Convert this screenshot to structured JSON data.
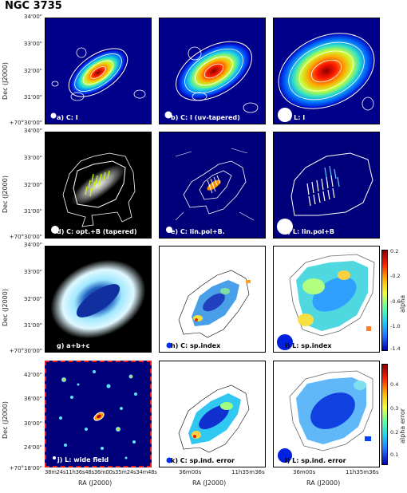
{
  "figure": {
    "title": "NGC 3735",
    "y_axis_label": "Dec (J2000)",
    "x_axis_label": "RA (J2000)",
    "dec_ticks_rows_1_3": [
      "34'00\"",
      "33'00\"",
      "32'00\"",
      "31'00\"",
      "+70°30'00\""
    ],
    "dec_ticks_row_4": [
      "42'00\"",
      "36'00\"",
      "30'00\"",
      "24'00\"",
      "+70°18'00\""
    ],
    "ra_ticks_wide": "38m24s11h36s48s36m00s35m24s34m48s",
    "ra_ticks_zoom_left": "36m00s",
    "ra_ticks_zoom_right": "11h35m36s"
  },
  "panels": [
    {
      "id": "a",
      "label": "a) C: I"
    },
    {
      "id": "b",
      "label": "b) C: I (uv-tapered)"
    },
    {
      "id": "c",
      "label": "c) L: I"
    },
    {
      "id": "d",
      "label": "d) C: opt.+B (tapered)"
    },
    {
      "id": "e",
      "label": "e) C: lin.pol+B."
    },
    {
      "id": "f",
      "label": "f) L: lin.pol+B"
    },
    {
      "id": "g",
      "label": "g) a+b+c"
    },
    {
      "id": "h",
      "label": "h) C: sp.index"
    },
    {
      "id": "i",
      "label": "i) L: sp.index"
    },
    {
      "id": "j",
      "label": "j) L: wide field"
    },
    {
      "id": "k",
      "label": "k) C: sp.ind. error"
    },
    {
      "id": "l",
      "label": "l) L: sp.ind. error"
    }
  ],
  "colorbars": [
    {
      "label": "alpha",
      "ticks": [
        "0.2",
        "-0.2",
        "-0.6",
        "-1.0",
        "-1.4"
      ]
    },
    {
      "label": "alpha error",
      "ticks": [
        "0.4",
        "0.3",
        "0.2",
        "0.1"
      ]
    }
  ]
}
